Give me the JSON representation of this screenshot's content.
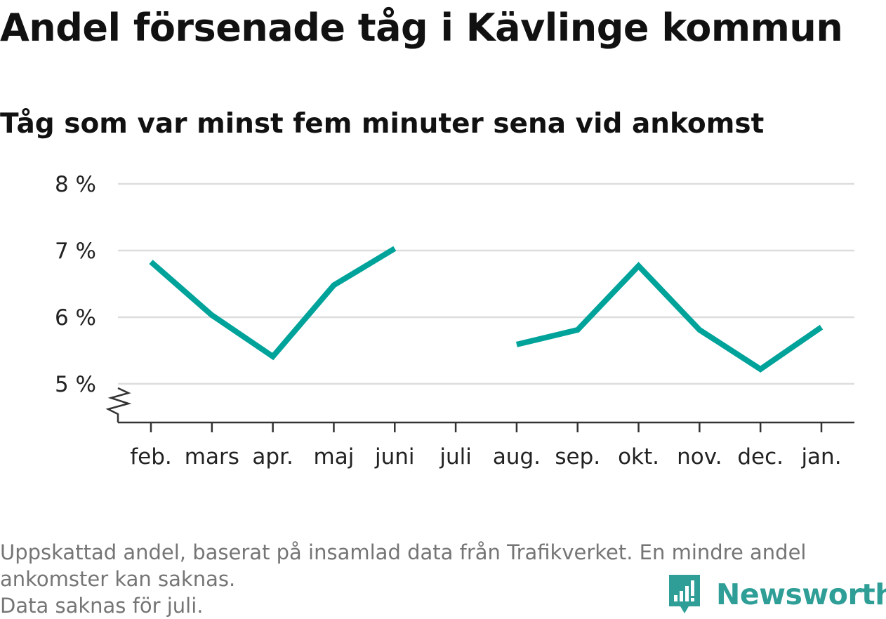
{
  "title": "Andel försenade tåg i Kävlinge kommun",
  "subtitle": "Tåg som var minst fem minuter sena vid ankomst",
  "chart_data": {
    "type": "line",
    "categories": [
      "feb.",
      "mars",
      "apr.",
      "maj",
      "juni",
      "juli",
      "aug.",
      "sep.",
      "okt.",
      "nov.",
      "dec.",
      "jan."
    ],
    "series": [
      {
        "values": [
          6.83,
          6.03,
          5.41,
          6.48,
          7.03,
          null,
          5.59,
          5.81,
          6.77,
          5.81,
          5.22,
          5.85
        ]
      }
    ],
    "y_ticks": [
      5,
      6,
      7,
      8
    ],
    "y_tick_labels": [
      "5 %",
      "6 %",
      "7 %",
      "8 %"
    ],
    "ylim": [
      4.42,
      8
    ],
    "y_axis_break": true,
    "grid": true,
    "colors": {
      "line": "#00a39a",
      "grid": "#dddddd",
      "axis": "#333333"
    }
  },
  "footnote": {
    "line1": "Uppskattad andel, baserat på insamlad data från Trafikverket. En mindre andel",
    "line2": "ankomster kan saknas.",
    "line3": "Data saknas för juli."
  },
  "logo": {
    "text": "Newsworthy",
    "icon": "newsworthy-logo-icon"
  }
}
